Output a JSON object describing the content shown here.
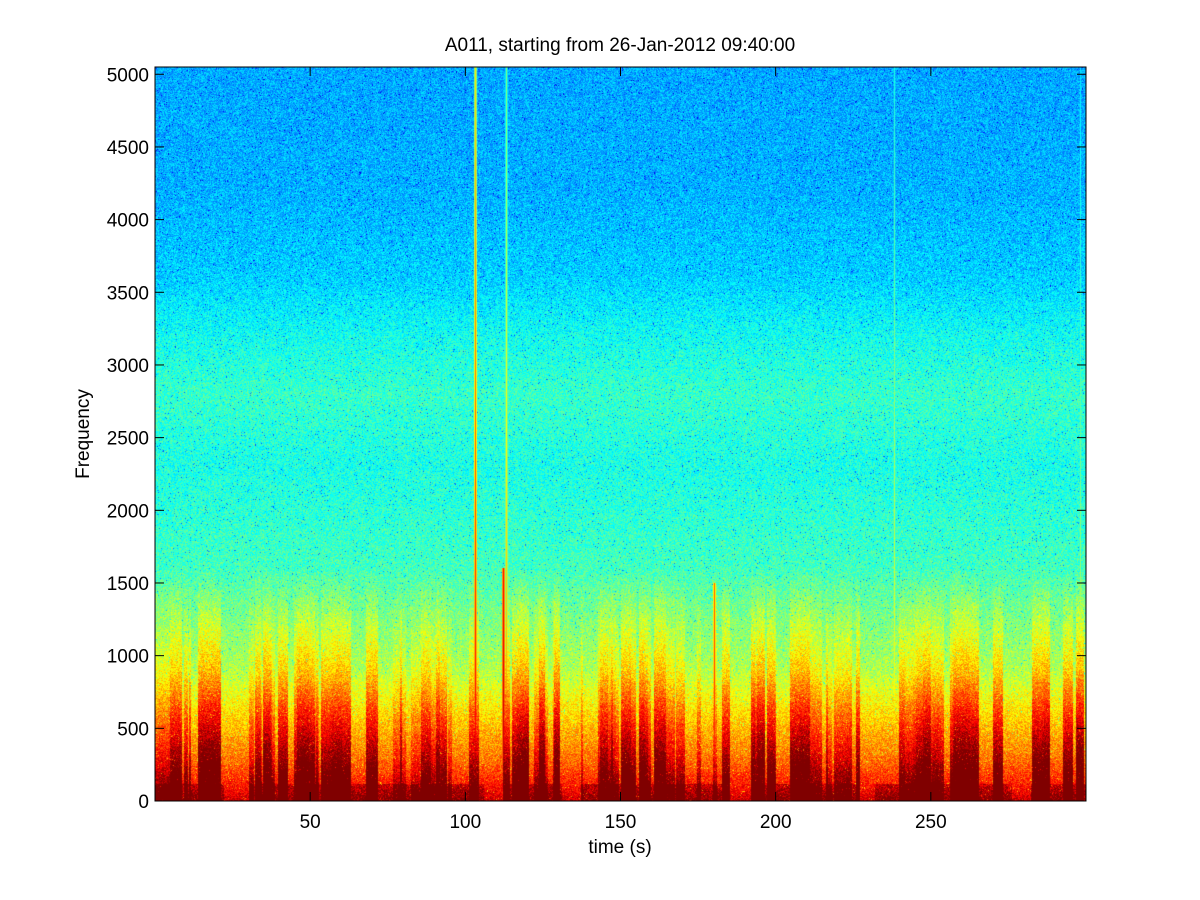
{
  "chart_data": {
    "type": "heatmap",
    "title": "A011, starting from 26-Jan-2012 09:40:00",
    "xlabel": "time (s)",
    "ylabel": "Frequency",
    "xlim": [
      0,
      300
    ],
    "ylim": [
      0,
      5050
    ],
    "xticks": [
      50,
      100,
      150,
      200,
      250
    ],
    "yticks": [
      0,
      500,
      1000,
      1500,
      2000,
      2500,
      3000,
      3500,
      4000,
      4500,
      5000
    ],
    "grid": false,
    "colormap": "jet",
    "colors": {
      "low": "#00c8ff",
      "background": "#17dcdc",
      "mid": "#7cff86",
      "high": "#ffff00",
      "peak": "#e00000"
    },
    "energy_by_frequency": [
      {
        "frequency": 0,
        "level": 0.93
      },
      {
        "frequency": 100,
        "level": 0.86
      },
      {
        "frequency": 300,
        "level": 0.76
      },
      {
        "frequency": 600,
        "level": 0.66
      },
      {
        "frequency": 900,
        "level": 0.55
      },
      {
        "frequency": 1300,
        "level": 0.49
      },
      {
        "frequency": 1600,
        "level": 0.44
      },
      {
        "frequency": 2300,
        "level": 0.4
      },
      {
        "frequency": 2800,
        "level": 0.43
      },
      {
        "frequency": 3200,
        "level": 0.39
      },
      {
        "frequency": 3600,
        "level": 0.33
      },
      {
        "frequency": 4200,
        "level": 0.3
      },
      {
        "frequency": 5050,
        "level": 0.29
      }
    ],
    "broadband_events": [
      {
        "time": 103,
        "extent": 5050,
        "level": 0.9
      },
      {
        "time": 113,
        "extent": 5050,
        "level": 0.75
      },
      {
        "time": 112,
        "extent": 1600,
        "level": 0.95
      },
      {
        "time": 238,
        "extent": 5050,
        "level": 0.65
      },
      {
        "time": 180,
        "extent": 1500,
        "level": 0.85
      },
      {
        "time": 298,
        "extent": 5050,
        "level": 0.6
      }
    ]
  }
}
